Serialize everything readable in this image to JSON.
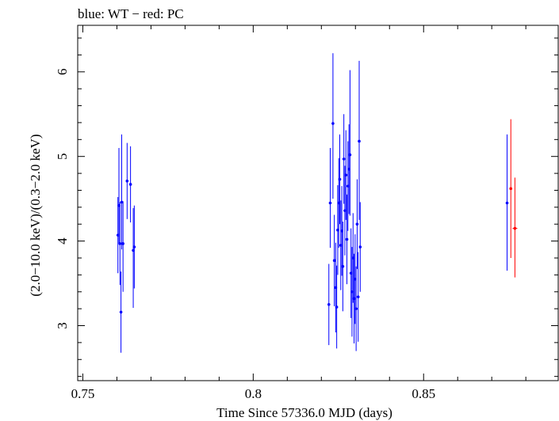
{
  "chart_data": {
    "type": "scatter",
    "title": "blue: WT − red: PC",
    "xlabel": "Time Since 57336.0 MJD (days)",
    "ylabel": "(2.0−10.0 keV)/(0.3−2.0 keV)",
    "xlim": [
      0.7485,
      0.8895
    ],
    "ylim": [
      2.35,
      6.55
    ],
    "x_ticks": [
      {
        "value": 0.75,
        "label": "0.75"
      },
      {
        "value": 0.8,
        "label": "0.8"
      },
      {
        "value": 0.85,
        "label": "0.85"
      }
    ],
    "y_ticks": [
      {
        "value": 3,
        "label": "3"
      },
      {
        "value": 4,
        "label": "4"
      },
      {
        "value": 5,
        "label": "5"
      },
      {
        "value": 6,
        "label": "6"
      }
    ],
    "grid": false,
    "series": [
      {
        "name": "WT",
        "color": "#0000ff",
        "points": [
          {
            "x": 0.7603,
            "y": 4.07,
            "lo": 3.62,
            "hi": 4.52
          },
          {
            "x": 0.7606,
            "y": 4.42,
            "lo": 3.97,
            "hi": 5.1
          },
          {
            "x": 0.7609,
            "y": 3.97,
            "lo": 3.48,
            "hi": 4.46
          },
          {
            "x": 0.7612,
            "y": 3.16,
            "lo": 2.68,
            "hi": 3.64
          },
          {
            "x": 0.7614,
            "y": 4.46,
            "lo": 3.9,
            "hi": 5.26
          },
          {
            "x": 0.7618,
            "y": 3.97,
            "lo": 3.4,
            "hi": 4.47
          },
          {
            "x": 0.763,
            "y": 4.71,
            "lo": 4.26,
            "hi": 5.16
          },
          {
            "x": 0.764,
            "y": 4.67,
            "lo": 4.22,
            "hi": 5.12
          },
          {
            "x": 0.7648,
            "y": 3.89,
            "lo": 3.21,
            "hi": 4.39
          },
          {
            "x": 0.7651,
            "y": 3.93,
            "lo": 3.44,
            "hi": 4.42
          },
          {
            "x": 0.8222,
            "y": 3.25,
            "lo": 2.77,
            "hi": 3.73
          },
          {
            "x": 0.8226,
            "y": 4.45,
            "lo": 3.92,
            "hi": 5.1
          },
          {
            "x": 0.8234,
            "y": 5.39,
            "lo": 4.5,
            "hi": 6.22
          },
          {
            "x": 0.8238,
            "y": 3.77,
            "lo": 3.23,
            "hi": 4.31
          },
          {
            "x": 0.8242,
            "y": 3.45,
            "lo": 2.92,
            "hi": 3.98
          },
          {
            "x": 0.8245,
            "y": 3.22,
            "lo": 2.73,
            "hi": 3.71
          },
          {
            "x": 0.8248,
            "y": 4.13,
            "lo": 3.6,
            "hi": 4.66
          },
          {
            "x": 0.8251,
            "y": 4.45,
            "lo": 3.92,
            "hi": 4.98
          },
          {
            "x": 0.8254,
            "y": 4.73,
            "lo": 4.2,
            "hi": 5.26
          },
          {
            "x": 0.8257,
            "y": 3.95,
            "lo": 3.42,
            "hi": 4.48
          },
          {
            "x": 0.826,
            "y": 4.12,
            "lo": 3.59,
            "hi": 4.65
          },
          {
            "x": 0.8263,
            "y": 3.7,
            "lo": 3.17,
            "hi": 4.23
          },
          {
            "x": 0.8266,
            "y": 4.97,
            "lo": 4.44,
            "hi": 5.5
          },
          {
            "x": 0.8269,
            "y": 4.36,
            "lo": 3.83,
            "hi": 4.89
          },
          {
            "x": 0.8272,
            "y": 4.78,
            "lo": 4.25,
            "hi": 5.31
          },
          {
            "x": 0.8275,
            "y": 4.02,
            "lo": 3.49,
            "hi": 4.55
          },
          {
            "x": 0.8278,
            "y": 4.65,
            "lo": 4.12,
            "hi": 5.18
          },
          {
            "x": 0.8281,
            "y": 4.85,
            "lo": 4.32,
            "hi": 5.38
          },
          {
            "x": 0.8284,
            "y": 5.02,
            "lo": 4.3,
            "hi": 6.02
          },
          {
            "x": 0.8287,
            "y": 3.62,
            "lo": 3.09,
            "hi": 4.15
          },
          {
            "x": 0.829,
            "y": 3.4,
            "lo": 2.87,
            "hi": 3.93
          },
          {
            "x": 0.8293,
            "y": 3.8,
            "lo": 3.27,
            "hi": 4.33
          },
          {
            "x": 0.8296,
            "y": 3.32,
            "lo": 2.79,
            "hi": 3.85
          },
          {
            "x": 0.8299,
            "y": 3.55,
            "lo": 3.02,
            "hi": 4.08
          },
          {
            "x": 0.8302,
            "y": 3.2,
            "lo": 2.7,
            "hi": 3.7
          },
          {
            "x": 0.8305,
            "y": 4.2,
            "lo": 3.67,
            "hi": 4.73
          },
          {
            "x": 0.8308,
            "y": 3.34,
            "lo": 2.81,
            "hi": 3.87
          },
          {
            "x": 0.8311,
            "y": 5.18,
            "lo": 4.25,
            "hi": 6.13
          },
          {
            "x": 0.8314,
            "y": 3.93,
            "lo": 3.4,
            "hi": 4.46
          },
          {
            "x": 0.8745,
            "y": 4.45,
            "lo": 3.65,
            "hi": 5.26
          }
        ]
      },
      {
        "name": "PC",
        "color": "#ff0000",
        "points": [
          {
            "x": 0.8756,
            "y": 4.62,
            "lo": 3.8,
            "hi": 5.44,
            "xerr": 0.0003
          },
          {
            "x": 0.8768,
            "y": 4.15,
            "lo": 3.57,
            "hi": 4.75,
            "xerr": 0.0007
          }
        ]
      }
    ]
  }
}
